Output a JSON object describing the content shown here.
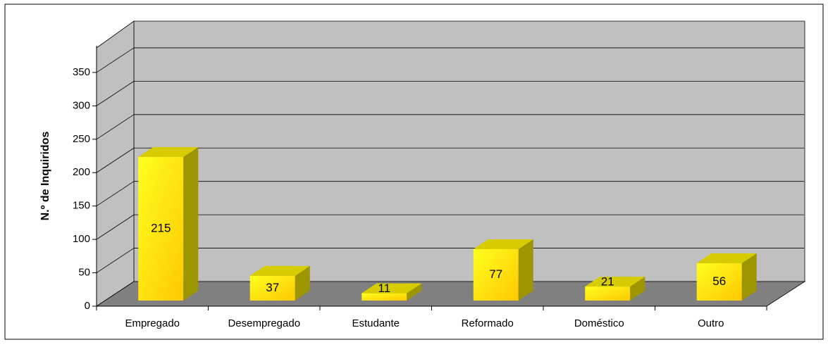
{
  "chart_data": {
    "type": "bar3d",
    "y_label": "N.º de Inquiridos",
    "categories": [
      "Empregado",
      "Desempregado",
      "Estudante",
      "Reformado",
      "Doméstico",
      "Outro"
    ],
    "values": [
      215,
      37,
      11,
      77,
      21,
      56
    ],
    "color": "#ffee00",
    "ylim": [
      0,
      390
    ],
    "yticks": [
      0,
      50,
      100,
      150,
      200,
      250,
      300,
      350
    ],
    "grid": true
  }
}
